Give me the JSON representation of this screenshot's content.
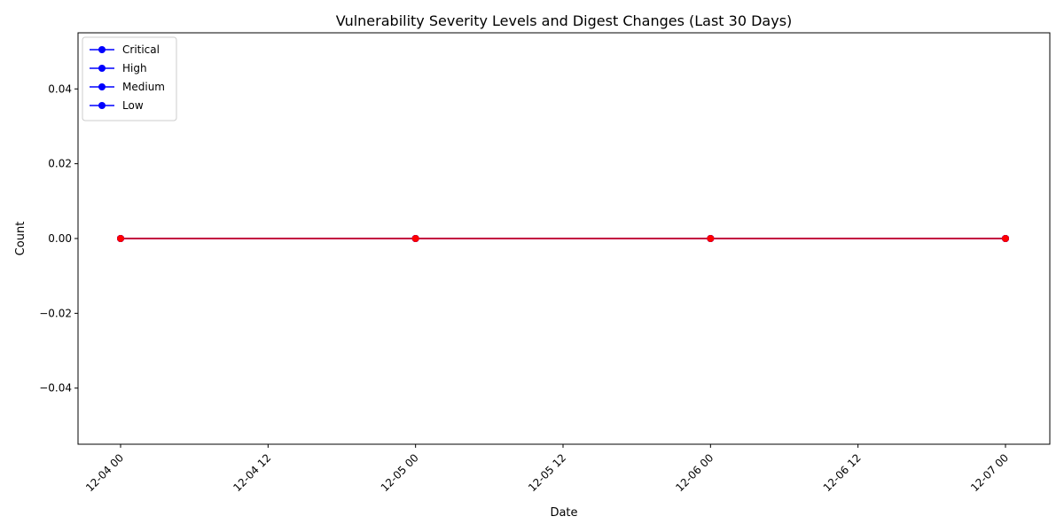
{
  "chart_data": {
    "type": "line",
    "title": "Vulnerability Severity Levels and Digest Changes (Last 30 Days)",
    "xlabel": "Date",
    "ylabel": "Count",
    "x": [
      "12-04 00",
      "12-05 00",
      "12-06 00",
      "12-07 00"
    ],
    "x_ticks": [
      "12-04 00",
      "12-04 12",
      "12-05 00",
      "12-05 12",
      "12-06 00",
      "12-06 12",
      "12-07 00"
    ],
    "y_ticks": [
      "−0.04",
      "−0.02",
      "0.00",
      "0.02",
      "0.04"
    ],
    "ylim": [
      -0.055,
      0.055
    ],
    "grid": false,
    "legend_position": "top-left",
    "series": [
      {
        "name": "Critical",
        "values": [
          0,
          0,
          0,
          0
        ],
        "color": "#0000ff"
      },
      {
        "name": "High",
        "values": [
          0,
          0,
          0,
          0
        ],
        "color": "#0000ff"
      },
      {
        "name": "Medium",
        "values": [
          0,
          0,
          0,
          0
        ],
        "color": "#0000ff"
      },
      {
        "name": "Low",
        "values": [
          0,
          0,
          0,
          0
        ],
        "color": "#0000ff"
      },
      {
        "name": "",
        "values": [
          0,
          0,
          0,
          0
        ],
        "color": "#ff0000"
      }
    ]
  }
}
